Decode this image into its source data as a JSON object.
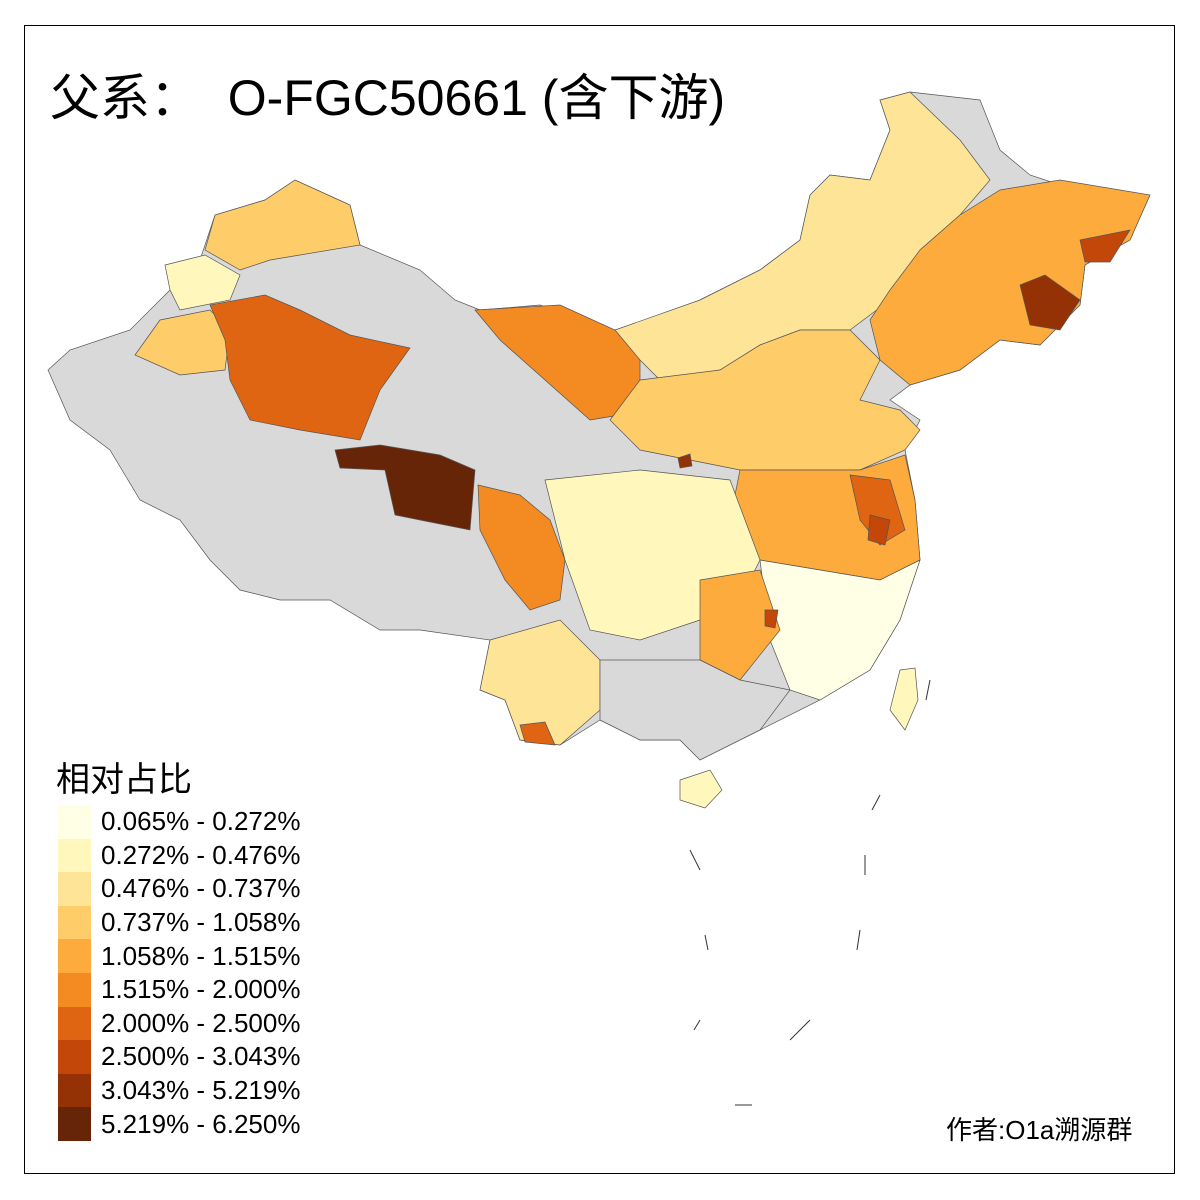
{
  "title": "父系：  O-FGC50661 (含下游)",
  "legend": {
    "title": "相对占比",
    "classes": [
      {
        "label": "0.065% - 0.272%",
        "color": "#FFFFE5"
      },
      {
        "label": "0.272% - 0.476%",
        "color": "#FFF7BC"
      },
      {
        "label": "0.476% - 0.737%",
        "color": "#FEE497"
      },
      {
        "label": "0.737% - 1.058%",
        "color": "#FECC69"
      },
      {
        "label": "1.058% - 1.515%",
        "color": "#FDAB3C"
      },
      {
        "label": "1.515% - 2.000%",
        "color": "#F38A22"
      },
      {
        "label": "2.000% - 2.500%",
        "color": "#E06513"
      },
      {
        "label": "2.500% - 3.043%",
        "color": "#C24709"
      },
      {
        "label": "3.043% - 5.219%",
        "color": "#943206"
      },
      {
        "label": "5.219% - 6.250%",
        "color": "#662506"
      }
    ],
    "no_data_color": "#D9D9D9"
  },
  "author": "作者:O1a溯源群"
}
